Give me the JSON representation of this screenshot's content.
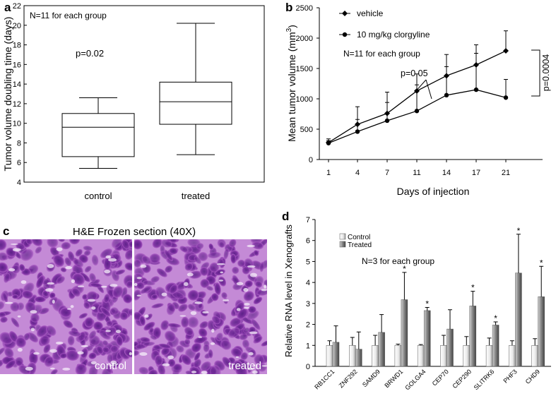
{
  "panels": {
    "a": "a",
    "b": "b",
    "c": "c",
    "d": "d"
  },
  "chart_data": [
    {
      "panel": "a",
      "type": "box",
      "ylabel": "Tumor volume doubling time (days)",
      "ylim": [
        4,
        22
      ],
      "yticks": [
        "4",
        "6",
        "8",
        "10",
        "12",
        "14",
        "16",
        "18",
        "20",
        "22"
      ],
      "categories": [
        "control",
        "treated"
      ],
      "boxes": [
        {
          "min": 5.4,
          "q1": 6.6,
          "median": 9.6,
          "q3": 11.0,
          "max": 12.6
        },
        {
          "min": 6.8,
          "q1": 9.9,
          "median": 12.2,
          "q3": 14.2,
          "max": 20.2
        }
      ],
      "annotations": {
        "n_label": "N=11 for each group",
        "p_label": "p=0.02"
      }
    },
    {
      "panel": "b",
      "type": "line",
      "ylabel": "Mean tumor volume (mm3)",
      "xlabel": "Days of injection",
      "categories": [
        "1",
        "4",
        "7",
        "11",
        "14",
        "17",
        "21"
      ],
      "ylim": [
        0,
        2500
      ],
      "yticks": [
        "0",
        "500",
        "1000",
        "1500",
        "2000",
        "2500"
      ],
      "series": [
        {
          "name": "vehicle",
          "marker": "diamond",
          "values": [
            280,
            580,
            760,
            1130,
            1380,
            1560,
            1790
          ],
          "errors": [
            60,
            290,
            350,
            280,
            350,
            330,
            330
          ]
        },
        {
          "name": "10 mg/kg clorgyline",
          "marker": "circle",
          "values": [
            270,
            460,
            640,
            800,
            1060,
            1150,
            1020
          ],
          "errors": [
            40,
            200,
            300,
            430,
            470,
            600,
            300
          ]
        }
      ],
      "annotations": {
        "n_label": "N=11 for each group",
        "p1": "p=0.05",
        "p2": "p=0.0004"
      }
    },
    {
      "panel": "d",
      "type": "bar",
      "ylabel": "Relative RNA level in Xenografts",
      "ylim": [
        0,
        7
      ],
      "yticks": [
        "0",
        "1",
        "2",
        "3",
        "4",
        "5",
        "6",
        "7"
      ],
      "categories": [
        "RB1CC1",
        "ZNF292",
        "SAMD9",
        "BRWD1",
        "GOLGA4",
        "CEP70",
        "CEP290",
        "SLITRK6",
        "PHF3",
        "CHD9"
      ],
      "series": [
        {
          "name": "Control",
          "values": [
            1,
            1,
            1,
            1,
            1,
            1,
            1,
            1,
            1,
            1
          ],
          "errors": [
            0.22,
            0.38,
            0.48,
            0.06,
            0.04,
            0.48,
            0.42,
            0.35,
            0.22,
            0.32
          ]
        },
        {
          "name": "Treated",
          "values": [
            1.15,
            0.82,
            1.62,
            3.18,
            2.66,
            1.78,
            2.88,
            1.97,
            4.45,
            3.32
          ],
          "errors": [
            0.78,
            0.82,
            0.85,
            1.3,
            0.15,
            0.92,
            0.7,
            0.15,
            1.85,
            1.45
          ]
        }
      ],
      "significant": [
        false,
        false,
        false,
        true,
        true,
        false,
        true,
        true,
        true,
        true
      ],
      "annotations": {
        "n_label": "N=3 for each group",
        "star": "*"
      }
    }
  ],
  "histology": {
    "panel": "c",
    "title": "H&E Frozen section (40X)",
    "left_label": "control",
    "right_label": "treated"
  }
}
